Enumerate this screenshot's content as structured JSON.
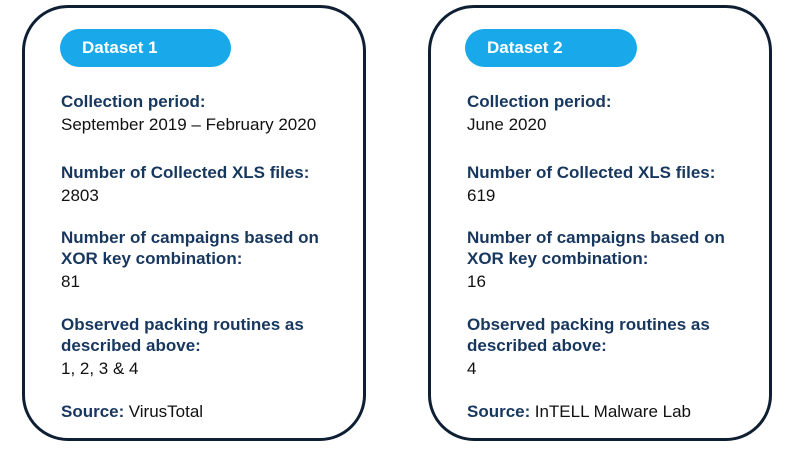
{
  "datasets": [
    {
      "title": "Dataset 1",
      "collection_period_label": "Collection period:",
      "collection_period_value": "September 2019 – February 2020",
      "xls_files_label": "Number of Collected XLS files:",
      "xls_files_value": "2803",
      "campaigns_label": "Number of campaigns based on\nXOR key combination:",
      "campaigns_value": "81",
      "packing_label": "Observed packing routines as\ndescribed above:",
      "packing_value": "1, 2, 3 & 4",
      "source_label": "Source:",
      "source_value": "VirusTotal"
    },
    {
      "title": "Dataset 2",
      "collection_period_label": "Collection period:",
      "collection_period_value": "June 2020",
      "xls_files_label": "Number of Collected XLS files:",
      "xls_files_value": "619",
      "campaigns_label": "Number of campaigns based on\nXOR key combination:",
      "campaigns_value": "16",
      "packing_label": "Observed packing routines as\ndescribed above:",
      "packing_value": "4",
      "source_label": "Source:",
      "source_value": "InTELL Malware Lab"
    }
  ],
  "colors": {
    "pill": "#19a9ea",
    "label": "#17375e",
    "border": "#0f1f33"
  }
}
